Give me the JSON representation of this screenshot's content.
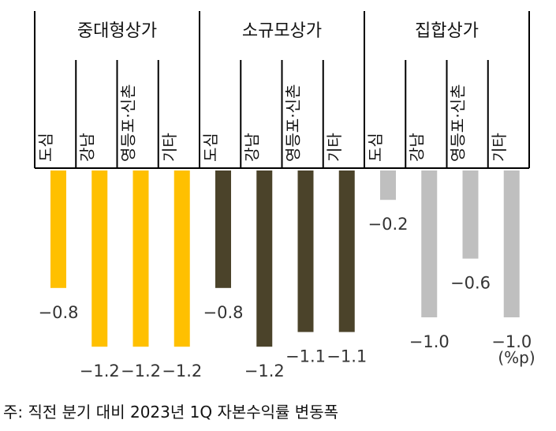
{
  "chart_data": {
    "type": "bar",
    "groups": [
      {
        "name": "중대형상가",
        "color": "#FFC000"
      },
      {
        "name": "소규모상가",
        "color": "#4B432A"
      },
      {
        "name": "집합상가",
        "color": "#BFBFBF"
      }
    ],
    "categories": [
      "도심",
      "강남",
      "영등포·신촌",
      "기타"
    ],
    "series": [
      {
        "name": "중대형상가",
        "values": [
          -0.8,
          -1.2,
          -1.2,
          -1.2
        ]
      },
      {
        "name": "소규모상가",
        "values": [
          -0.8,
          -1.2,
          -1.1,
          -1.1
        ]
      },
      {
        "name": "집합상가",
        "values": [
          -0.2,
          -1.0,
          -0.6,
          -1.0
        ]
      }
    ],
    "value_labels": [
      [
        "−0.8",
        "−1.2",
        "−1.2",
        "−1.2"
      ],
      [
        "−0.8",
        "−1.2",
        "−1.1",
        "−1.1"
      ],
      [
        "−0.2",
        "−1.0",
        "−0.6",
        "−1.0"
      ]
    ],
    "unit": "(%p)",
    "ylim": [
      -1.2,
      0
    ]
  },
  "footnote": "주: 직전 분기 대비 2023년 1Q 자본수익률 변동폭"
}
